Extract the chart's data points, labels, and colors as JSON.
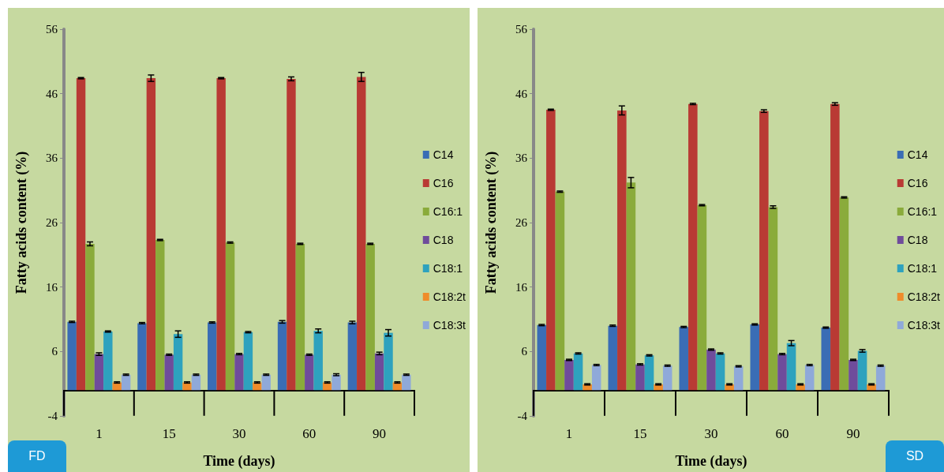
{
  "chart_data": [
    {
      "type": "bar",
      "xlabel": "Time (days)",
      "ylabel": "Fatty acids content (%)",
      "categories": [
        "1",
        "15",
        "30",
        "60",
        "90"
      ],
      "ylim": [
        -4,
        56
      ],
      "yticks": [
        -4,
        6,
        16,
        26,
        36,
        46,
        56
      ],
      "grid": false,
      "legend": "right",
      "annotations": [
        "FD"
      ],
      "series": [
        {
          "name": "C14",
          "color": "#3a6db5",
          "values": [
            10.6,
            10.4,
            10.5,
            10.6,
            10.5
          ],
          "errors": [
            0.1,
            0.1,
            0.1,
            0.2,
            0.2
          ]
        },
        {
          "name": "C16",
          "color": "#b93a34",
          "values": [
            48.4,
            48.4,
            48.4,
            48.3,
            48.6
          ],
          "errors": [
            0.1,
            0.5,
            0.1,
            0.3,
            0.7
          ]
        },
        {
          "name": "C16:1",
          "color": "#8aab3b",
          "values": [
            22.7,
            23.3,
            22.9,
            22.7,
            22.7
          ],
          "errors": [
            0.3,
            0.1,
            0.1,
            0.1,
            0.1
          ]
        },
        {
          "name": "C18",
          "color": "#6f4c9b",
          "values": [
            5.6,
            5.5,
            5.6,
            5.5,
            5.7
          ],
          "errors": [
            0.2,
            0.1,
            0.1,
            0.1,
            0.2
          ]
        },
        {
          "name": "C18:1",
          "color": "#2ea2be",
          "values": [
            9.1,
            8.7,
            9.0,
            9.2,
            8.9
          ],
          "errors": [
            0.1,
            0.5,
            0.1,
            0.3,
            0.5
          ]
        },
        {
          "name": "C18:2t",
          "color": "#ef8c2b",
          "values": [
            1.2,
            1.2,
            1.2,
            1.2,
            1.2
          ],
          "errors": [
            0.1,
            0.1,
            0.1,
            0.1,
            0.1
          ]
        },
        {
          "name": "C18:3t",
          "color": "#8fa9d9",
          "values": [
            2.4,
            2.4,
            2.4,
            2.4,
            2.4
          ],
          "errors": [
            0.1,
            0.1,
            0.1,
            0.15,
            0.1
          ]
        }
      ]
    },
    {
      "type": "bar",
      "xlabel": "Time (days)",
      "ylabel": "Fatty acids content (%)",
      "categories": [
        "1",
        "15",
        "30",
        "60",
        "90"
      ],
      "ylim": [
        -4,
        56
      ],
      "yticks": [
        -4,
        6,
        16,
        26,
        36,
        46,
        56
      ],
      "grid": false,
      "legend": "right",
      "annotations": [
        "SD"
      ],
      "series": [
        {
          "name": "C14",
          "color": "#3a6db5",
          "values": [
            10.1,
            10.0,
            9.8,
            10.2,
            9.7
          ],
          "errors": [
            0.1,
            0.1,
            0.1,
            0.1,
            0.1
          ]
        },
        {
          "name": "C16",
          "color": "#b93a34",
          "values": [
            43.5,
            43.4,
            44.4,
            43.3,
            44.4
          ],
          "errors": [
            0.1,
            0.7,
            0.1,
            0.2,
            0.2
          ]
        },
        {
          "name": "C16:1",
          "color": "#8aab3b",
          "values": [
            30.8,
            32.2,
            28.7,
            28.4,
            29.9
          ],
          "errors": [
            0.1,
            0.8,
            0.1,
            0.2,
            0.1
          ]
        },
        {
          "name": "C18",
          "color": "#6f4c9b",
          "values": [
            4.7,
            4.0,
            6.3,
            5.6,
            4.7
          ],
          "errors": [
            0.1,
            0.1,
            0.1,
            0.1,
            0.1
          ]
        },
        {
          "name": "C18:1",
          "color": "#2ea2be",
          "values": [
            5.7,
            5.4,
            5.7,
            7.3,
            6.1
          ],
          "errors": [
            0.1,
            0.1,
            0.1,
            0.4,
            0.2
          ]
        },
        {
          "name": "C18:2t",
          "color": "#ef8c2b",
          "values": [
            0.9,
            0.9,
            0.9,
            0.9,
            0.9
          ],
          "errors": [
            0.1,
            0.1,
            0.1,
            0.1,
            0.1
          ]
        },
        {
          "name": "C18:3t",
          "color": "#8fa9d9",
          "values": [
            3.9,
            3.8,
            3.7,
            3.9,
            3.8
          ],
          "errors": [
            0.1,
            0.1,
            0.1,
            0.1,
            0.1
          ]
        }
      ]
    }
  ]
}
